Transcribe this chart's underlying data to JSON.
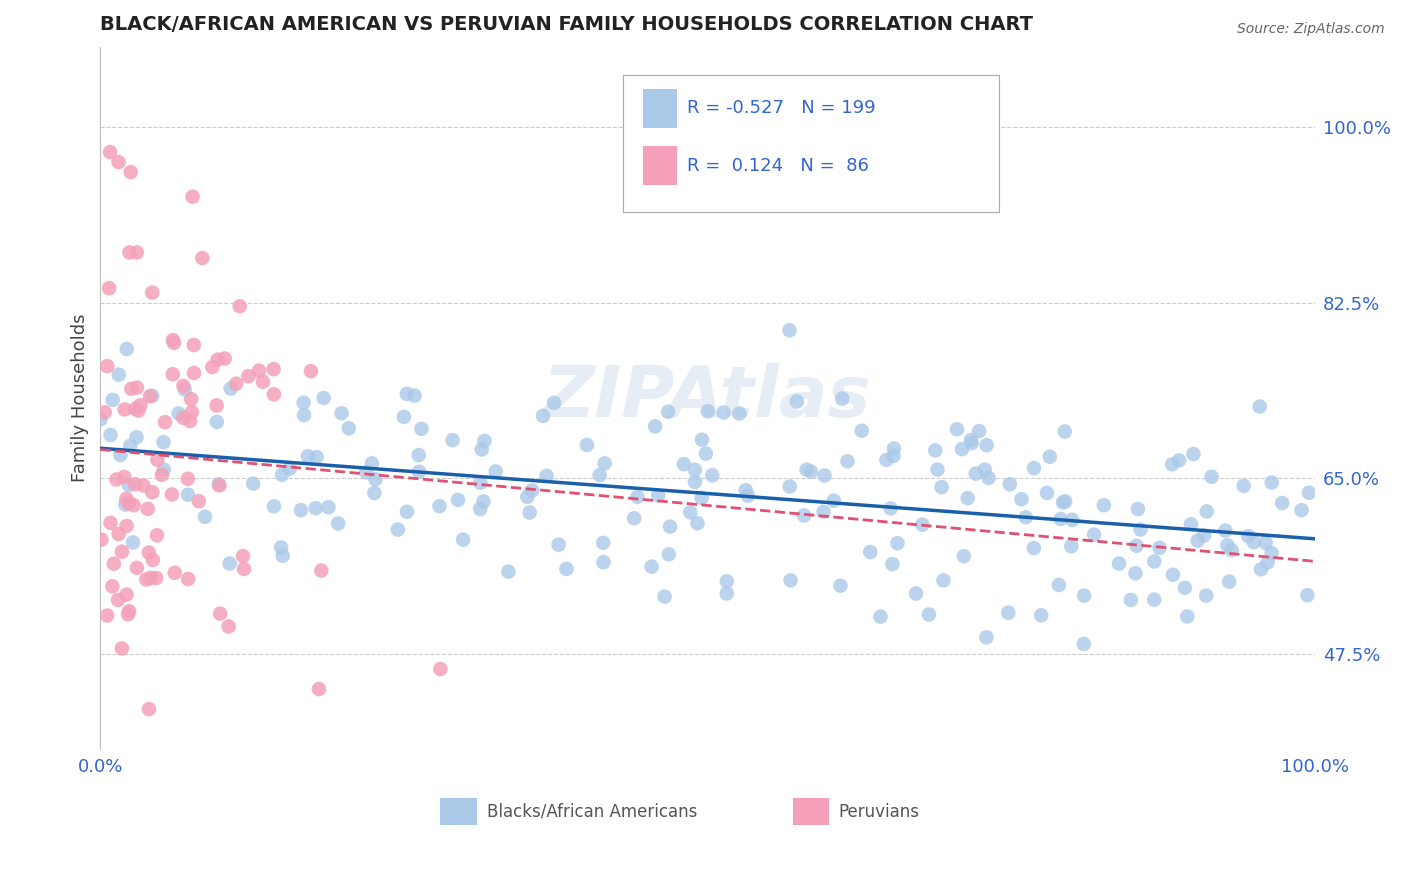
{
  "title": "BLACK/AFRICAN AMERICAN VS PERUVIAN FAMILY HOUSEHOLDS CORRELATION CHART",
  "source": "Source: ZipAtlas.com",
  "ylabel": "Family Households",
  "ytick_labels": [
    "47.5%",
    "65.0%",
    "82.5%",
    "100.0%"
  ],
  "ytick_values": [
    0.475,
    0.65,
    0.825,
    1.0
  ],
  "xlim": [
    0.0,
    1.0
  ],
  "ylim": [
    0.38,
    1.08
  ],
  "blue_R": -0.527,
  "blue_N": 199,
  "pink_R": 0.124,
  "pink_N": 86,
  "blue_color": "#aac8e8",
  "pink_color": "#f4a0b8",
  "blue_line_color": "#1a5faa",
  "pink_line_color": "#e05070",
  "grid_color": "#cccccc",
  "watermark": "ZIPAtlas",
  "text_color": "#3366cc",
  "title_color": "#222222",
  "source_color": "#666666"
}
